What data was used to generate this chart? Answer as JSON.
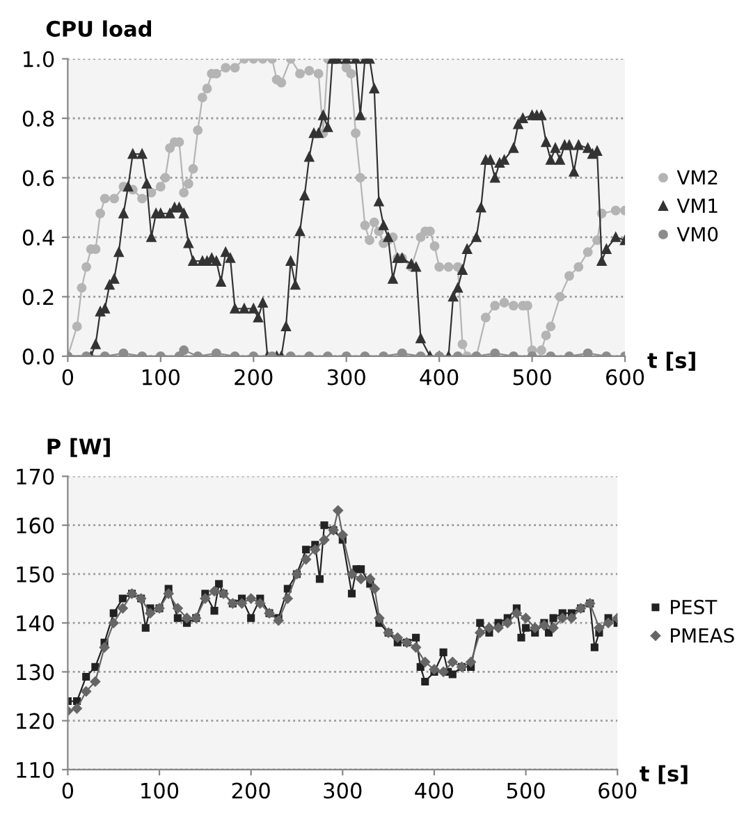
{
  "chart_data": [
    {
      "type": "line",
      "ylabel": "CPU load",
      "xlabel": "t [s]",
      "xlim": [
        0,
        600
      ],
      "xticks": [
        0,
        100,
        200,
        300,
        400,
        500,
        600
      ],
      "ylim": [
        0,
        1.0
      ],
      "yticks": [
        {
          "value": 0,
          "label": "0.0"
        },
        {
          "value": 0.2,
          "label": "0.2"
        },
        {
          "value": 0.4,
          "label": "0.4"
        },
        {
          "value": 0.6,
          "label": "0.6"
        },
        {
          "value": 0.8,
          "label": "0.8"
        },
        {
          "value": 1.0,
          "label": "1.0"
        }
      ],
      "grid": "y",
      "legend": "right",
      "line_style": "solid",
      "series": [
        {
          "name": "VM2",
          "color": "#b4b4b4",
          "marker": "circle",
          "x": [
            0,
            10,
            15,
            20,
            25,
            30,
            35,
            40,
            50,
            60,
            70,
            80,
            90,
            100,
            105,
            110,
            115,
            120,
            125,
            130,
            135,
            140,
            145,
            150,
            155,
            160,
            170,
            180,
            190,
            200,
            210,
            220,
            225,
            230,
            240,
            250,
            260,
            270,
            275,
            280,
            290,
            300,
            305,
            310,
            315,
            320,
            325,
            330,
            335,
            340,
            345,
            350,
            355,
            360,
            370,
            380,
            385,
            390,
            395,
            400,
            410,
            420,
            425,
            430,
            440,
            450,
            460,
            470,
            480,
            490,
            495,
            500,
            510,
            515,
            520,
            530,
            540,
            550,
            560,
            570,
            575,
            590,
            600
          ],
          "values": [
            0,
            0.1,
            0.23,
            0.3,
            0.36,
            0.36,
            0.48,
            0.53,
            0.53,
            0.57,
            0.56,
            0.53,
            0.55,
            0.57,
            0.6,
            0.7,
            0.72,
            0.72,
            0.55,
            0.58,
            0.63,
            0.76,
            0.87,
            0.9,
            0.95,
            0.95,
            0.97,
            0.97,
            1.0,
            1.0,
            1.0,
            1.0,
            0.93,
            0.92,
            1.0,
            0.95,
            0.96,
            0.95,
            0.75,
            1.0,
            1.0,
            0.97,
            0.95,
            0.75,
            0.6,
            0.44,
            0.39,
            0.45,
            0.42,
            0.38,
            0.39,
            0.4,
            0.33,
            0.33,
            0.3,
            0.4,
            0.42,
            0.42,
            0.37,
            0.3,
            0.3,
            0.3,
            0.04,
            0.0,
            0.0,
            0.13,
            0.17,
            0.18,
            0.17,
            0.17,
            0.17,
            0.02,
            0.02,
            0.07,
            0.1,
            0.2,
            0.27,
            0.3,
            0.35,
            0.39,
            0.48,
            0.49,
            0.49
          ]
        },
        {
          "name": "VM1",
          "color": "#333333",
          "marker": "triangle",
          "x": [
            0,
            25,
            30,
            35,
            40,
            45,
            50,
            55,
            60,
            65,
            70,
            80,
            85,
            90,
            95,
            100,
            110,
            115,
            120,
            125,
            130,
            135,
            145,
            150,
            155,
            160,
            165,
            170,
            175,
            180,
            190,
            200,
            205,
            210,
            215,
            225,
            230,
            235,
            240,
            245,
            250,
            255,
            260,
            265,
            270,
            275,
            280,
            285,
            290,
            300,
            310,
            315,
            320,
            325,
            330,
            335,
            340,
            345,
            350,
            355,
            360,
            370,
            375,
            380,
            390,
            400,
            410,
            415,
            420,
            425,
            430,
            440,
            445,
            450,
            455,
            460,
            465,
            470,
            480,
            485,
            490,
            500,
            505,
            510,
            515,
            520,
            525,
            530,
            535,
            540,
            545,
            550,
            560,
            565,
            570,
            575,
            580,
            590,
            600
          ],
          "values": [
            0,
            0,
            0.04,
            0.15,
            0.16,
            0.24,
            0.26,
            0.35,
            0.48,
            0.57,
            0.68,
            0.68,
            0.58,
            0.4,
            0.48,
            0.48,
            0.48,
            0.5,
            0.5,
            0.48,
            0.38,
            0.32,
            0.32,
            0.32,
            0.33,
            0.32,
            0.25,
            0.35,
            0.33,
            0.16,
            0.16,
            0.16,
            0.13,
            0.18,
            0.0,
            0.0,
            0.0,
            0.1,
            0.32,
            0.24,
            0.42,
            0.54,
            0.67,
            0.75,
            0.75,
            0.81,
            0.77,
            1.0,
            1.0,
            1.0,
            1.0,
            0.81,
            1.0,
            1.0,
            0.9,
            0.52,
            0.44,
            0.4,
            0.26,
            0.33,
            0.33,
            0.31,
            0.3,
            0.06,
            0.0,
            0.0,
            0.0,
            0.2,
            0.23,
            0.29,
            0.36,
            0.4,
            0.5,
            0.66,
            0.66,
            0.6,
            0.65,
            0.66,
            0.7,
            0.78,
            0.8,
            0.81,
            0.81,
            0.81,
            0.72,
            0.66,
            0.7,
            0.66,
            0.71,
            0.71,
            0.62,
            0.71,
            0.7,
            0.68,
            0.69,
            0.32,
            0.36,
            0.4,
            0.39
          ]
        },
        {
          "name": "VM0",
          "color": "#8c8c8c",
          "marker": "circle",
          "x": [
            0,
            20,
            40,
            60,
            80,
            100,
            120,
            125,
            140,
            160,
            180,
            200,
            220,
            240,
            260,
            280,
            300,
            320,
            340,
            360,
            380,
            400,
            420,
            440,
            460,
            480,
            500,
            520,
            540,
            560,
            580,
            600
          ],
          "values": [
            0,
            0,
            0,
            0.01,
            0,
            0,
            0,
            0.02,
            0,
            0.01,
            0,
            0,
            0,
            0,
            0,
            0,
            0,
            0,
            0,
            0.01,
            0,
            0,
            0,
            0,
            0.01,
            0,
            0,
            0,
            0,
            0.01,
            0,
            0
          ]
        }
      ]
    },
    {
      "type": "line",
      "ylabel": "P [W]",
      "xlabel": "t [s]",
      "xlim": [
        0,
        600
      ],
      "xticks": [
        0,
        100,
        200,
        300,
        400,
        500,
        600
      ],
      "ylim": [
        110,
        170
      ],
      "yticks": [
        110,
        120,
        130,
        140,
        150,
        160,
        170
      ],
      "grid": "y",
      "legend": "right",
      "line_style": "solid",
      "series": [
        {
          "name": "PEST",
          "color": "#222222",
          "marker": "square",
          "x": [
            0,
            10,
            20,
            30,
            40,
            50,
            60,
            70,
            80,
            85,
            90,
            100,
            110,
            120,
            130,
            140,
            150,
            160,
            165,
            170,
            180,
            190,
            200,
            210,
            220,
            230,
            240,
            250,
            260,
            270,
            275,
            280,
            290,
            300,
            310,
            315,
            320,
            330,
            340,
            350,
            360,
            370,
            380,
            385,
            390,
            400,
            410,
            415,
            420,
            430,
            440,
            450,
            460,
            470,
            480,
            490,
            495,
            500,
            510,
            520,
            525,
            530,
            540,
            550,
            560,
            570,
            575,
            580,
            590,
            600
          ],
          "values": [
            124,
            124,
            129,
            131,
            136,
            142,
            145,
            146,
            145,
            139,
            143,
            143,
            147,
            141,
            140,
            141,
            146,
            142.5,
            148,
            146,
            144,
            145,
            141,
            145,
            142,
            141,
            147,
            150,
            155,
            156,
            149,
            160,
            159,
            157,
            146,
            151,
            151,
            148,
            140,
            138,
            136,
            136,
            137,
            131,
            128,
            130,
            134,
            130,
            129.5,
            131,
            131,
            140,
            138,
            140,
            141,
            143,
            137,
            139,
            138,
            140,
            138,
            141,
            142,
            142,
            143,
            144,
            135,
            138,
            141,
            140
          ]
        },
        {
          "name": "PMEAS",
          "color": "#666666",
          "marker": "diamond",
          "x": [
            0,
            10,
            20,
            30,
            40,
            50,
            60,
            70,
            80,
            90,
            100,
            110,
            120,
            130,
            140,
            150,
            160,
            170,
            180,
            190,
            200,
            210,
            220,
            230,
            240,
            250,
            260,
            270,
            280,
            290,
            295,
            300,
            310,
            320,
            330,
            335,
            340,
            350,
            360,
            370,
            380,
            390,
            400,
            410,
            420,
            430,
            440,
            450,
            460,
            470,
            480,
            490,
            500,
            510,
            520,
            530,
            540,
            550,
            560,
            570,
            580,
            590,
            600
          ],
          "values": [
            122,
            122.5,
            126,
            128,
            135,
            140,
            143,
            146,
            145,
            142,
            143,
            146,
            143,
            141,
            141,
            145,
            146.5,
            146,
            144,
            144,
            145,
            144,
            142,
            140.5,
            145,
            150,
            153,
            155,
            157,
            159,
            163,
            158,
            150,
            149,
            149,
            147,
            141,
            138,
            137,
            136,
            135,
            132,
            130.5,
            130,
            132,
            131,
            132,
            138,
            139,
            139,
            140,
            142,
            141,
            139,
            139.5,
            139,
            141,
            141,
            143,
            144,
            139,
            140,
            141
          ]
        }
      ]
    }
  ]
}
